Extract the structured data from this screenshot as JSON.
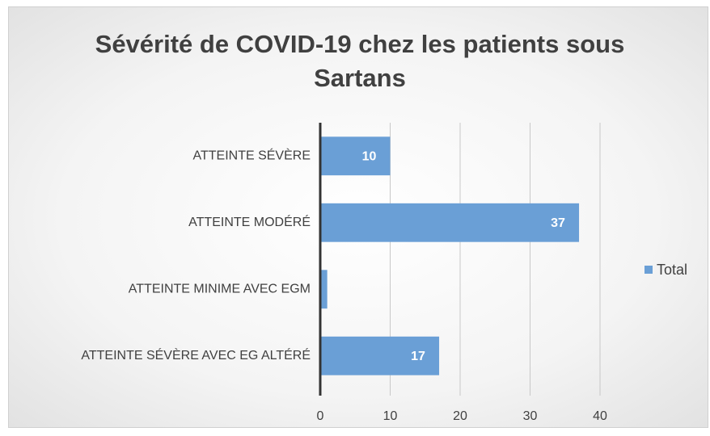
{
  "chart_data": {
    "type": "hbar",
    "title": "Sévérité de COVID-19 chez les patients sous Sartans",
    "categories": [
      "ATTEINTE SÉVÈRE",
      "ATTEINTE MODÉRÉ",
      "ATTEINTE MINIME AVEC EGM",
      "ATTEINTE SÉVÈRE AVEC EG ALTÉRÉ"
    ],
    "series": [
      {
        "name": "Total",
        "color": "#6a9fd6",
        "values": [
          10,
          37,
          1,
          17
        ],
        "value_labels": [
          "10",
          "37",
          null,
          "17"
        ]
      }
    ],
    "xlim": [
      0,
      40
    ],
    "xticks": [
      0,
      10,
      20,
      30,
      40
    ],
    "grid": true,
    "legend": "right"
  }
}
